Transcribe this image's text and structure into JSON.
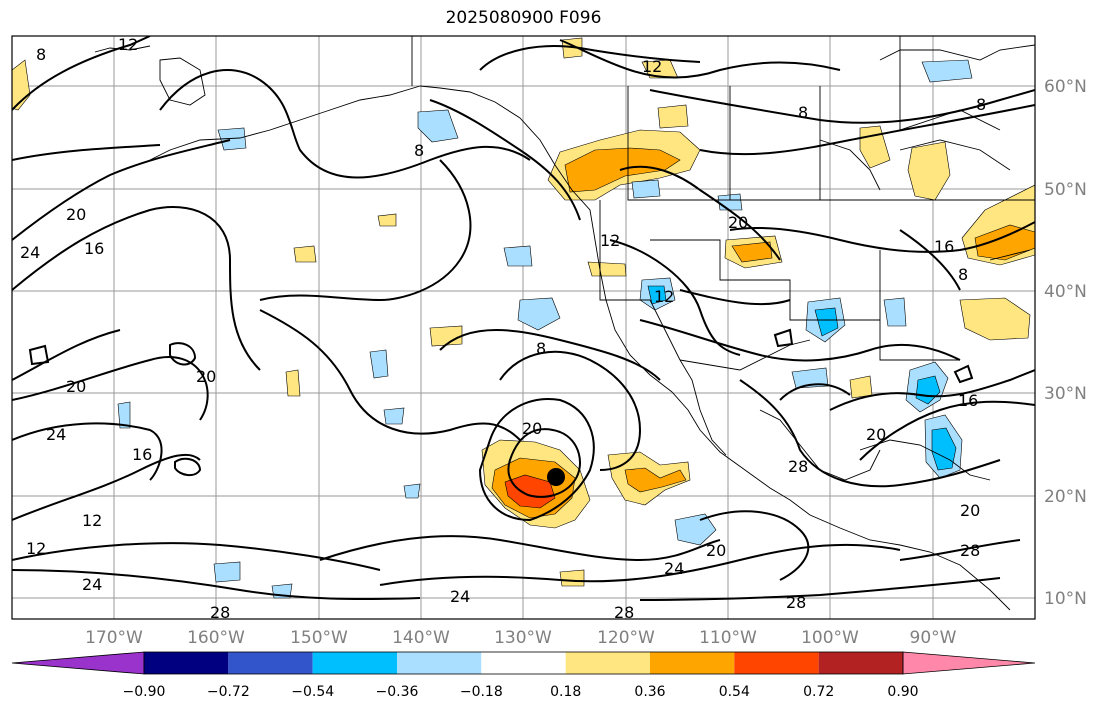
{
  "title": "2025080900 F096",
  "lon_ticks": [
    "170°W",
    "160°W",
    "150°W",
    "140°W",
    "130°W",
    "120°W",
    "110°W",
    "100°W",
    "90°W"
  ],
  "lat_ticks": [
    "10°N",
    "20°N",
    "30°N",
    "40°N",
    "50°N",
    "60°N"
  ],
  "colorbar": {
    "labels": [
      "−0.90",
      "−0.72",
      "−0.54",
      "−0.36",
      "−0.18",
      "0.18",
      "0.36",
      "0.54",
      "0.72",
      "0.90"
    ],
    "colors": [
      "#9933cc",
      "#000080",
      "#3355cc",
      "#00bfff",
      "#aadfff",
      "#ffffff",
      "#ffe680",
      "#ffa500",
      "#ff4500",
      "#b22222",
      "#ff88aa"
    ]
  },
  "contour_labels": [
    "8",
    "12",
    "20",
    "24",
    "16",
    "20",
    "24",
    "16",
    "12",
    "12",
    "24",
    "28",
    "8",
    "8",
    "20",
    "24",
    "28",
    "20",
    "8",
    "12",
    "12",
    "20",
    "16",
    "12",
    "28",
    "20",
    "24",
    "20",
    "8",
    "8",
    "16",
    "20",
    "28",
    "28"
  ],
  "storm_marker": "filled-circle"
}
